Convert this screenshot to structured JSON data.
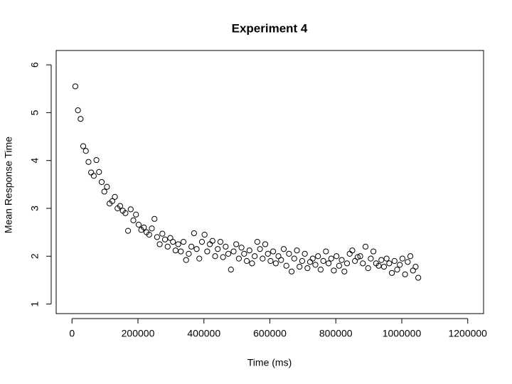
{
  "chart_data": {
    "type": "scatter",
    "title": "Experiment 4",
    "x_label": "Time (ms)",
    "y_label": "Mean Response Time",
    "xlim": [
      -48000,
      1248000
    ],
    "ylim": [
      0.8,
      6.3
    ],
    "xticks": [
      0,
      200000,
      400000,
      600000,
      800000,
      1000000,
      1200000
    ],
    "yticks": [
      1,
      2,
      3,
      4,
      5,
      6
    ],
    "color": "#000000",
    "x": [
      10000,
      18000,
      26000,
      34000,
      42000,
      50000,
      58000,
      66000,
      74000,
      82000,
      90000,
      98000,
      106000,
      114000,
      122000,
      130000,
      138000,
      146000,
      154000,
      162000,
      170000,
      178000,
      186000,
      194000,
      202000,
      210000,
      218000,
      226000,
      234000,
      242000,
      250000,
      258000,
      266000,
      274000,
      282000,
      290000,
      298000,
      306000,
      314000,
      322000,
      330000,
      338000,
      346000,
      354000,
      362000,
      370000,
      378000,
      386000,
      394000,
      402000,
      410000,
      418000,
      426000,
      434000,
      442000,
      450000,
      458000,
      466000,
      474000,
      482000,
      490000,
      498000,
      506000,
      514000,
      522000,
      530000,
      538000,
      546000,
      554000,
      562000,
      570000,
      578000,
      586000,
      594000,
      602000,
      610000,
      618000,
      626000,
      634000,
      642000,
      650000,
      658000,
      666000,
      674000,
      682000,
      690000,
      698000,
      706000,
      714000,
      722000,
      730000,
      738000,
      746000,
      754000,
      762000,
      770000,
      778000,
      786000,
      794000,
      802000,
      810000,
      818000,
      826000,
      834000,
      842000,
      850000,
      858000,
      866000,
      874000,
      882000,
      890000,
      898000,
      906000,
      914000,
      922000,
      930000,
      938000,
      946000,
      954000,
      962000,
      970000,
      978000,
      986000,
      994000,
      1002000,
      1010000,
      1018000,
      1026000,
      1034000,
      1042000,
      1050000
    ],
    "values": [
      5.55,
      5.05,
      4.87,
      4.3,
      4.2,
      3.97,
      3.75,
      3.68,
      4.01,
      3.76,
      3.55,
      3.35,
      3.45,
      3.1,
      3.15,
      3.24,
      3.0,
      3.05,
      2.95,
      2.9,
      2.53,
      2.98,
      2.75,
      2.87,
      2.66,
      2.55,
      2.6,
      2.5,
      2.45,
      2.58,
      2.78,
      2.4,
      2.25,
      2.47,
      2.35,
      2.2,
      2.38,
      2.3,
      2.12,
      2.25,
      2.1,
      2.3,
      1.92,
      2.05,
      2.2,
      2.48,
      2.15,
      1.95,
      2.3,
      2.45,
      2.1,
      2.25,
      2.32,
      2.0,
      2.15,
      2.3,
      1.98,
      2.2,
      2.05,
      1.72,
      2.1,
      2.25,
      1.95,
      2.18,
      2.05,
      1.9,
      2.12,
      1.85,
      2.0,
      2.3,
      2.15,
      1.95,
      2.25,
      2.05,
      1.9,
      2.1,
      1.85,
      2.0,
      1.92,
      2.15,
      1.8,
      2.05,
      1.68,
      1.95,
      2.12,
      1.78,
      1.9,
      2.05,
      1.75,
      1.88,
      1.95,
      1.82,
      2.0,
      1.72,
      1.9,
      2.1,
      1.85,
      1.95,
      1.7,
      2.0,
      1.8,
      1.92,
      1.68,
      1.85,
      2.05,
      2.12,
      1.9,
      1.98,
      2.0,
      1.85,
      2.2,
      1.75,
      1.95,
      2.1,
      1.85,
      1.8,
      1.92,
      1.78,
      1.95,
      1.85,
      1.65,
      1.9,
      1.72,
      1.82,
      1.95,
      1.62,
      1.88,
      2.0,
      1.7,
      1.78,
      1.55
    ]
  }
}
